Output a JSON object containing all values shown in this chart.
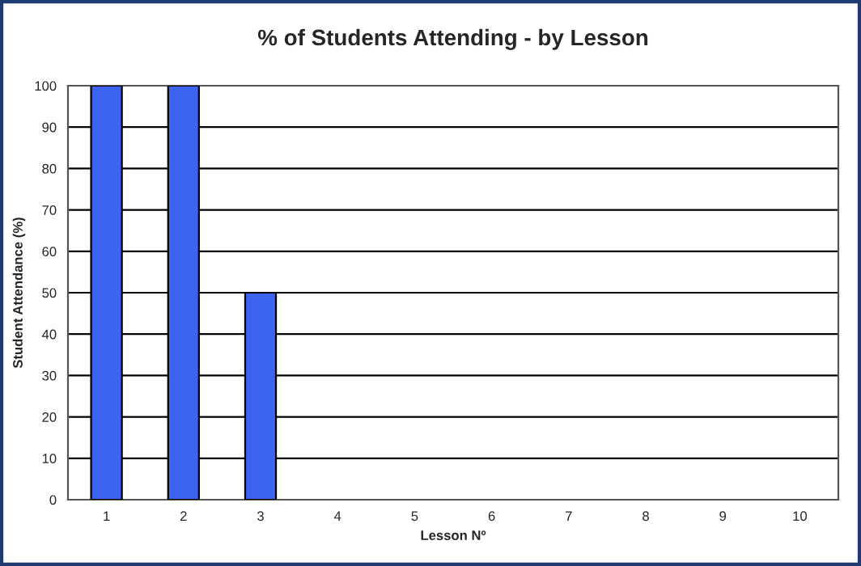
{
  "chart_data": {
    "type": "bar",
    "title": "% of Students Attending - by Lesson",
    "xlabel": "Lesson Nº",
    "ylabel": "Student Attendance (%)",
    "categories": [
      "1",
      "2",
      "3",
      "4",
      "5",
      "6",
      "7",
      "8",
      "9",
      "10"
    ],
    "values": [
      100,
      100,
      50,
      0,
      0,
      0,
      0,
      0,
      0,
      0
    ],
    "color": "#3c64f0",
    "ylim": [
      0,
      100
    ],
    "yticks": [
      0,
      10,
      20,
      30,
      40,
      50,
      60,
      70,
      80,
      90,
      100
    ],
    "grid": "y",
    "legend": false
  }
}
